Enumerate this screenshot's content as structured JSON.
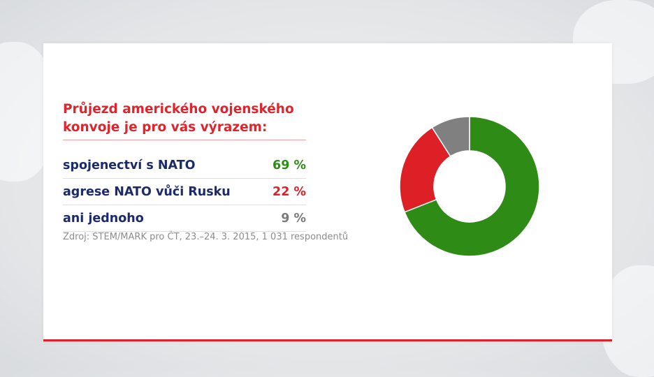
{
  "title": "Průjezd amerického vojenského konvoje je pro vás výrazem:",
  "source": "Zdroj: STEM/MARK pro ČT, 23.–24. 3. 2015, 1 031 respondentů",
  "rows": [
    {
      "label": "spojenectví s NATO",
      "value_text": "69 %",
      "color": "#2e8b16"
    },
    {
      "label": "agrese NATO vůči Rusku",
      "value_text": "22 %",
      "color": "#dd1f26"
    },
    {
      "label": "ani jednoho",
      "value_text": "9 %",
      "color": "#7a7a7a"
    }
  ],
  "chart_data": {
    "type": "pie",
    "title": "Průjezd amerického vojenského konvoje je pro vás výrazem:",
    "categories": [
      "spojenectví s NATO",
      "agrese NATO vůči Rusku",
      "ani jednoho"
    ],
    "values": [
      69,
      22,
      9
    ],
    "colors": [
      "#2e8b16",
      "#dd1f26",
      "#808080"
    ],
    "donut": true
  }
}
